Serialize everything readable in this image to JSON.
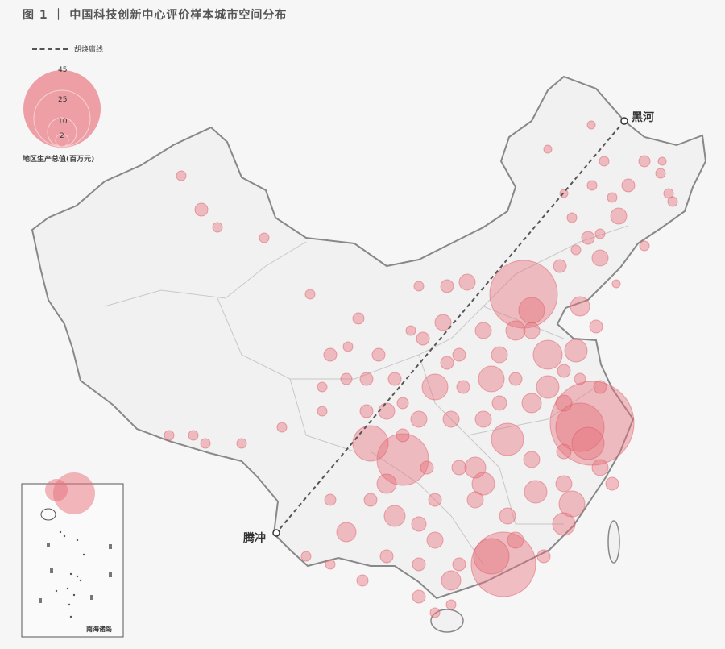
{
  "title": "图 1 ｜ 中国科技创新中心评价样本城市空间分布",
  "legend": {
    "line_label": "胡焕庸线",
    "size_title": "地区生产总值(百万元)",
    "size_values": [
      "45",
      "25",
      "10",
      "2"
    ],
    "bubble_color": "#e8707a"
  },
  "cities": {
    "heihe": "黑河",
    "tengchong": "腾冲"
  },
  "inset": {
    "label": "南海诸岛"
  },
  "colors": {
    "land": "#f1f1f1",
    "border": "#c8c8c8",
    "outline": "#888888",
    "line": "#555555"
  }
}
